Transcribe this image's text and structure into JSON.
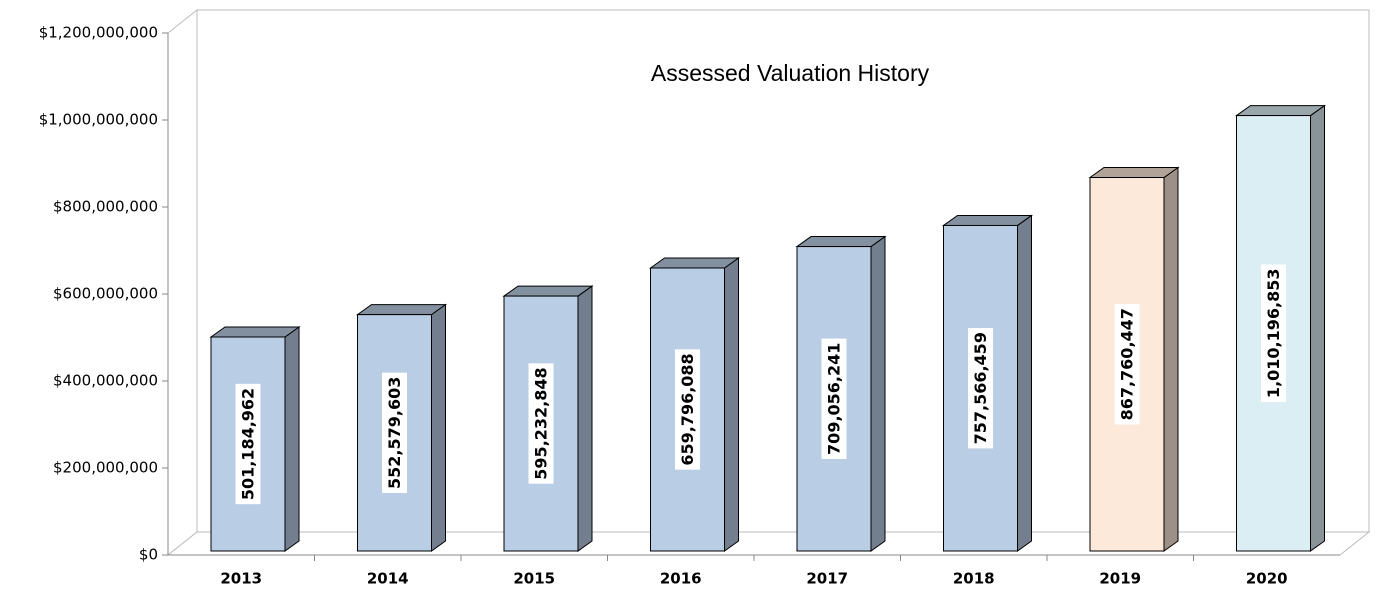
{
  "chart_data": {
    "type": "bar3d",
    "title": "Assessed Valuation History",
    "categories": [
      "2013",
      "2014",
      "2015",
      "2016",
      "2017",
      "2018",
      "2019",
      "2020"
    ],
    "values": [
      501184962,
      552579603,
      595232848,
      659796088,
      709056241,
      757566459,
      867760447,
      1010196853
    ],
    "value_labels": [
      "501,184,962",
      "552,579,603",
      "595,232,848",
      "659,796,088",
      "709,056,241",
      "757,566,459",
      "867,760,447",
      "1,010,196,853"
    ],
    "colors": [
      "#b9cde5",
      "#b9cde5",
      "#b9cde5",
      "#b9cde5",
      "#b9cde5",
      "#b9cde5",
      "#fde9d9",
      "#dbeef4"
    ],
    "ylim": [
      0,
      1200000000
    ],
    "yticks": [
      {
        "value": 0,
        "label": "$0"
      },
      {
        "value": 200000000,
        "label": "$200,000,000"
      },
      {
        "value": 400000000,
        "label": "$400,000,000"
      },
      {
        "value": 600000000,
        "label": "$600,000,000"
      },
      {
        "value": 800000000,
        "label": "$800,000,000"
      },
      {
        "value": 1000000000,
        "label": "$1,000,000,000"
      },
      {
        "value": 1200000000,
        "label": "$1,200,000,000"
      }
    ],
    "grid": false
  }
}
